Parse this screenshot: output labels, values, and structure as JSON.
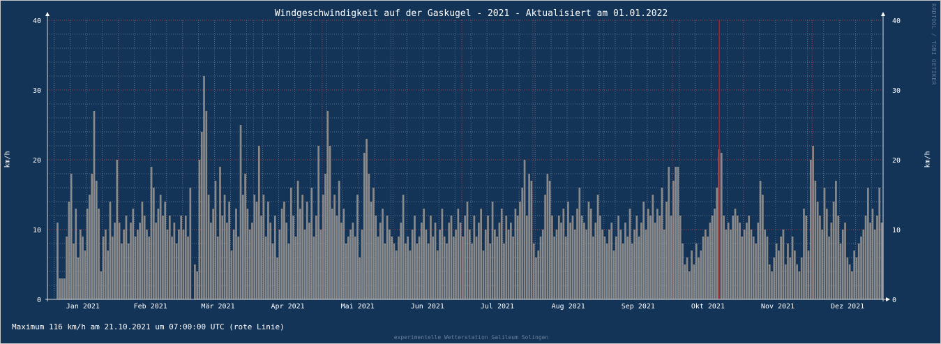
{
  "chart_data": {
    "type": "bar",
    "title": "Windgeschwindigkeit auf der Gaskugel - 2021 - Aktualisiert am 01.01.2022",
    "ylabel": "km/h",
    "ylim": [
      0,
      40
    ],
    "yticks": [
      0,
      10,
      20,
      30,
      40
    ],
    "grid": true,
    "colors": {
      "background": "#133357",
      "bars": "#8a8a8a",
      "grid_minor": "#5a7290",
      "grid_major": "#b0404a",
      "max_line": "#ff0000"
    },
    "max_marker": {
      "date": "21.10.2021",
      "value_kmh": 116
    },
    "months": [
      {
        "label": "Jan 2021",
        "values": [
          null,
          null,
          null,
          null,
          11,
          3,
          3,
          3,
          9,
          14,
          18,
          8,
          13,
          6,
          10,
          9,
          7,
          13,
          15,
          18,
          27,
          17,
          13,
          4,
          9,
          10,
          7,
          14,
          9,
          11,
          20
        ]
      },
      {
        "label": "Feb 2021",
        "values": [
          11,
          8,
          10,
          12,
          8,
          11,
          13,
          9,
          10,
          11,
          14,
          12,
          10,
          9,
          19,
          16,
          11,
          13,
          15,
          12,
          14,
          10,
          12,
          9,
          11,
          8,
          10,
          12
        ]
      },
      {
        "label": "Mär 2021",
        "values": [
          10,
          12,
          9,
          16,
          null,
          5,
          4,
          20,
          24,
          32,
          27,
          15,
          11,
          13,
          17,
          9,
          19,
          12,
          15,
          11,
          14,
          7,
          10,
          13,
          9,
          25,
          15,
          18,
          13,
          10,
          11
        ]
      },
      {
        "label": "Apr 2021",
        "values": [
          15,
          14,
          22,
          12,
          15,
          9,
          14,
          11,
          8,
          12,
          6,
          10,
          13,
          14,
          11,
          8,
          16,
          12,
          9,
          17,
          13,
          15,
          10,
          14,
          11,
          16,
          9,
          12,
          22,
          10
        ]
      },
      {
        "label": "Mai 2021",
        "values": [
          15,
          18,
          27,
          22,
          13,
          15,
          12,
          17,
          11,
          13,
          8,
          9,
          10,
          11,
          9,
          15,
          6,
          10,
          21,
          23,
          18,
          14,
          16,
          12,
          9,
          11,
          13,
          8,
          12,
          10,
          9
        ]
      },
      {
        "label": "Jun 2021",
        "values": [
          8,
          7,
          9,
          11,
          15,
          8,
          9,
          7,
          10,
          12,
          8,
          9,
          11,
          13,
          10,
          8,
          12,
          9,
          11,
          7,
          10,
          13,
          9,
          8,
          11,
          12,
          9,
          10,
          13,
          11
        ]
      },
      {
        "label": "Jul 2021",
        "values": [
          9,
          12,
          14,
          10,
          8,
          12,
          9,
          11,
          13,
          7,
          10,
          12,
          8,
          14,
          10,
          9,
          11,
          13,
          8,
          12,
          10,
          11,
          9,
          13,
          12,
          14,
          16,
          20,
          12,
          18,
          17
        ]
      },
      {
        "label": "Aug 2021",
        "values": [
          8,
          6,
          7,
          9,
          10,
          15,
          18,
          17,
          12,
          9,
          10,
          12,
          11,
          13,
          9,
          14,
          11,
          12,
          10,
          13,
          16,
          12,
          11,
          10,
          14,
          13,
          9,
          11,
          15,
          12,
          10
        ]
      },
      {
        "label": "Sep 2021",
        "values": [
          9,
          8,
          10,
          11,
          7,
          9,
          12,
          10,
          8,
          11,
          9,
          13,
          8,
          10,
          12,
          9,
          11,
          14,
          10,
          13,
          12,
          15,
          11,
          13,
          12,
          16,
          10,
          14,
          19,
          12
        ]
      },
      {
        "label": "Okt 2021",
        "values": [
          17,
          19,
          19,
          12,
          8,
          5,
          6,
          4,
          7,
          5,
          8,
          6,
          7,
          9,
          10,
          9,
          11,
          12,
          13,
          16,
          21.5,
          21,
          12,
          10,
          11,
          10,
          12,
          13,
          12,
          11,
          9
        ]
      },
      {
        "label": "Nov 2021",
        "values": [
          10,
          11,
          12,
          10,
          9,
          8,
          11,
          17,
          15,
          10,
          9,
          5,
          4,
          6,
          8,
          7,
          9,
          10,
          5,
          8,
          6,
          9,
          7,
          5,
          4,
          6,
          13,
          12,
          7,
          20
        ]
      },
      {
        "label": "Dez 2021",
        "values": [
          22,
          17,
          14,
          12,
          10,
          16,
          13,
          9,
          11,
          14,
          17,
          12,
          8,
          10,
          11,
          6,
          5,
          4,
          7,
          6,
          8,
          9,
          10,
          12,
          16,
          11,
          13,
          10,
          12,
          16,
          11
        ]
      }
    ]
  },
  "watermark": "RRDTOOL / TOBI OETIKER",
  "footer": "Maximum 116 km/h am 21.10.2021 um 07:00:00 UTC (rote Linie)",
  "credit": "experimentelle Wetterstation Galileum Solingen"
}
